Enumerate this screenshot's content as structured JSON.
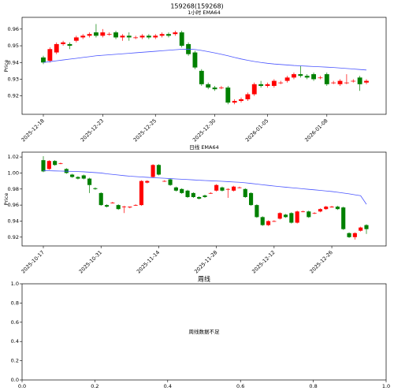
{
  "title": "159268(159268)",
  "chart_data": [
    {
      "type": "candlestick",
      "title": "1小时 EMA64",
      "ylabel": "Price",
      "ylim": [
        0.909,
        0.967
      ],
      "yticks": [
        0.92,
        0.93,
        0.94,
        0.95,
        0.96
      ],
      "up_color": "#ff0000",
      "down_color": "#008000",
      "categories": [
        "2025-12-18",
        null,
        null,
        null,
        null,
        null,
        null,
        null,
        null,
        "2025-12-23",
        null,
        null,
        null,
        null,
        null,
        null,
        null,
        "2025-12-25",
        null,
        null,
        null,
        null,
        null,
        null,
        null,
        null,
        "2025-12-30",
        null,
        null,
        null,
        null,
        null,
        null,
        null,
        "2026-01-05",
        null,
        null,
        null,
        null,
        null,
        null,
        null,
        null,
        "2026-01-08",
        null,
        null,
        null,
        null,
        null,
        null
      ],
      "open": [
        0.943,
        0.941,
        0.946,
        0.951,
        0.951,
        0.953,
        0.955,
        0.956,
        0.958,
        0.956,
        0.957,
        0.958,
        0.955,
        0.956,
        0.955,
        0.955,
        0.956,
        0.955,
        0.956,
        0.957,
        0.957,
        0.958,
        0.951,
        0.946,
        0.935,
        0.927,
        0.925,
        0.925,
        0.925,
        0.916,
        0.917,
        0.918,
        0.921,
        0.927,
        0.926,
        0.926,
        0.928,
        0.929,
        0.931,
        0.933,
        0.932,
        0.933,
        0.931,
        0.933,
        0.928,
        0.927,
        0.928,
        0.929,
        0.931,
        0.928
      ],
      "high": [
        0.944,
        0.949,
        0.952,
        0.953,
        0.952,
        0.956,
        0.957,
        0.958,
        0.963,
        0.96,
        0.958,
        0.959,
        0.957,
        0.958,
        0.956,
        0.957,
        0.957,
        0.957,
        0.958,
        0.958,
        0.959,
        0.959,
        0.952,
        0.947,
        0.936,
        0.928,
        0.926,
        0.926,
        0.926,
        0.918,
        0.919,
        0.922,
        0.928,
        0.929,
        0.928,
        0.93,
        0.929,
        0.932,
        0.934,
        0.938,
        0.933,
        0.934,
        0.932,
        0.934,
        0.929,
        0.93,
        0.933,
        0.93,
        0.932,
        0.93
      ],
      "low": [
        0.939,
        0.94,
        0.945,
        0.95,
        0.948,
        0.952,
        0.954,
        0.955,
        0.955,
        0.955,
        0.956,
        0.954,
        0.953,
        0.953,
        0.954,
        0.954,
        0.954,
        0.954,
        0.955,
        0.955,
        0.956,
        0.949,
        0.944,
        0.936,
        0.926,
        0.924,
        0.923,
        0.924,
        0.915,
        0.915,
        0.916,
        0.917,
        0.92,
        0.925,
        0.925,
        0.925,
        0.927,
        0.928,
        0.93,
        0.931,
        0.93,
        0.929,
        0.93,
        0.926,
        0.927,
        0.926,
        0.927,
        0.928,
        0.923,
        0.927
      ],
      "close": [
        0.94,
        0.948,
        0.951,
        0.952,
        0.95,
        0.955,
        0.956,
        0.957,
        0.956,
        0.958,
        0.957,
        0.955,
        0.956,
        0.955,
        0.955,
        0.956,
        0.955,
        0.956,
        0.957,
        0.956,
        0.958,
        0.95,
        0.945,
        0.937,
        0.927,
        0.925,
        0.924,
        0.925,
        0.916,
        0.917,
        0.918,
        0.921,
        0.927,
        0.926,
        0.927,
        0.929,
        0.928,
        0.931,
        0.933,
        0.932,
        0.931,
        0.93,
        0.931,
        0.927,
        0.928,
        0.929,
        0.928,
        0.929,
        0.927,
        0.929
      ],
      "ema": {
        "color": "#4a55ff",
        "values": [
          0.94,
          0.9405,
          0.941,
          0.9415,
          0.942,
          0.9425,
          0.943,
          0.9435,
          0.944,
          0.9443,
          0.9446,
          0.9449,
          0.9452,
          0.9455,
          0.9458,
          0.9461,
          0.9464,
          0.9467,
          0.947,
          0.9473,
          0.9476,
          0.9479,
          0.948,
          0.9478,
          0.9472,
          0.9465,
          0.9457,
          0.9449,
          0.944,
          0.943,
          0.9421,
          0.9413,
          0.9406,
          0.94,
          0.9395,
          0.9391,
          0.9388,
          0.9385,
          0.9382,
          0.938,
          0.9378,
          0.9376,
          0.9374,
          0.9372,
          0.937,
          0.9367,
          0.9364,
          0.9361,
          0.9358,
          0.9355
        ]
      }
    },
    {
      "type": "candlestick",
      "title": "日线 EMA64",
      "ylabel": "Price",
      "ylim": [
        0.909,
        1.026
      ],
      "yticks": [
        0.92,
        0.94,
        0.96,
        0.98,
        {
          "value": 1,
          "label": "1.00"
        },
        1.02
      ],
      "up_color": "#ff0000",
      "down_color": "#008000",
      "categories": [
        "2025-10-17",
        null,
        null,
        null,
        null,
        null,
        null,
        null,
        null,
        null,
        "2025-10-31",
        null,
        null,
        null,
        null,
        null,
        null,
        null,
        null,
        null,
        "2025-11-14",
        null,
        null,
        null,
        null,
        null,
        null,
        null,
        null,
        null,
        "2025-11-28",
        null,
        null,
        null,
        null,
        null,
        null,
        null,
        null,
        null,
        "2025-12-12",
        null,
        null,
        null,
        null,
        null,
        null,
        null,
        null,
        null,
        "2025-12-26",
        null,
        null,
        null,
        null,
        null,
        null
      ],
      "open": [
        1.016,
        1.005,
        1.015,
        1.012,
        1.005,
        0.998,
        0.995,
        0.997,
        0.993,
        0.981,
        0.975,
        0.96,
        0.963,
        0.96,
        0.958,
        0.957,
        0.96,
        0.96,
        0.988,
        0.995,
        1.01,
        0.99,
        0.992,
        0.982,
        0.98,
        0.978,
        0.975,
        0.97,
        0.972,
        0.975,
        0.978,
        0.982,
        0.98,
        0.978,
        0.982,
        0.98,
        0.975,
        0.96,
        0.945,
        0.935,
        0.94,
        0.943,
        0.948,
        0.95,
        0.938,
        0.952,
        0.952,
        0.95,
        0.952,
        0.955,
        0.957,
        0.958,
        0.957,
        0.925,
        0.92,
        0.928,
        0.935
      ],
      "high": [
        1.021,
        1.016,
        1.016,
        1.013,
        1.006,
        0.999,
        0.996,
        0.998,
        0.994,
        0.982,
        0.976,
        0.961,
        0.964,
        0.961,
        0.959,
        0.958,
        0.961,
        0.991,
        0.991,
        1.011,
        1.011,
        0.991,
        0.993,
        0.983,
        0.981,
        0.979,
        0.976,
        0.971,
        0.973,
        0.976,
        0.986,
        0.983,
        0.981,
        0.984,
        0.983,
        0.981,
        0.976,
        0.961,
        0.946,
        0.941,
        0.941,
        0.951,
        0.949,
        0.951,
        0.953,
        0.953,
        0.953,
        0.951,
        0.956,
        0.959,
        0.959,
        0.959,
        0.958,
        0.926,
        0.926,
        0.933,
        0.936
      ],
      "low": [
        1.001,
        1.004,
        1.009,
        1.011,
        0.999,
        0.994,
        0.992,
        0.992,
        0.975,
        0.979,
        0.959,
        0.957,
        0.962,
        0.954,
        0.95,
        0.956,
        0.959,
        0.959,
        0.987,
        0.994,
        0.997,
        0.989,
        0.984,
        0.977,
        0.974,
        0.969,
        0.969,
        0.967,
        0.969,
        0.974,
        0.977,
        0.977,
        0.969,
        0.977,
        0.981,
        0.969,
        0.959,
        0.944,
        0.934,
        0.934,
        0.939,
        0.942,
        0.944,
        0.937,
        0.937,
        0.951,
        0.944,
        0.949,
        0.951,
        0.954,
        0.957,
        0.954,
        0.929,
        0.919,
        0.917,
        0.927,
        0.924
      ],
      "close": [
        1.002,
        1.015,
        1.01,
        1.012,
        1.0,
        0.995,
        0.993,
        0.993,
        0.985,
        0.98,
        0.96,
        0.958,
        0.963,
        0.955,
        0.958,
        0.958,
        0.96,
        0.99,
        0.99,
        1.01,
        0.998,
        0.99,
        0.985,
        0.978,
        0.975,
        0.97,
        0.97,
        0.968,
        0.97,
        0.975,
        0.985,
        0.978,
        0.98,
        0.983,
        0.982,
        0.97,
        0.96,
        0.945,
        0.935,
        0.94,
        0.94,
        0.95,
        0.945,
        0.938,
        0.952,
        0.952,
        0.945,
        0.95,
        0.955,
        0.958,
        0.958,
        0.955,
        0.93,
        0.92,
        0.925,
        0.932,
        0.93
      ],
      "ema": {
        "color": "#4a55ff",
        "values": [
          1.003,
          1.0028,
          1.0026,
          1.0024,
          1.0022,
          1.002,
          1.0018,
          1.0015,
          1.001,
          1.0005,
          1.0,
          0.999,
          0.9982,
          0.9975,
          0.9967,
          0.996,
          0.9955,
          0.995,
          0.9946,
          0.9942,
          0.9938,
          0.9934,
          0.993,
          0.9926,
          0.9922,
          0.9918,
          0.9914,
          0.991,
          0.9906,
          0.9903,
          0.99,
          0.9896,
          0.9892,
          0.9888,
          0.9884,
          0.9878,
          0.987,
          0.9862,
          0.9853,
          0.9845,
          0.9837,
          0.983,
          0.9823,
          0.9816,
          0.981,
          0.9803,
          0.9796,
          0.979,
          0.9783,
          0.9776,
          0.9769,
          0.976,
          0.975,
          0.974,
          0.9728,
          0.9717,
          0.961
        ]
      }
    },
    {
      "type": "empty",
      "title": "周线",
      "message": "周线数据不足",
      "xlim": [
        0,
        1
      ],
      "ylim": [
        0,
        1
      ],
      "xticks": [
        {
          "value": 0,
          "label": "0.0"
        },
        0.2,
        0.4,
        0.6,
        0.8,
        {
          "value": 1,
          "label": "1.0"
        }
      ],
      "yticks": [
        {
          "value": 0,
          "label": "0.0"
        },
        0.2,
        0.4,
        0.6,
        0.8,
        {
          "value": 1,
          "label": "1.0"
        }
      ]
    }
  ]
}
